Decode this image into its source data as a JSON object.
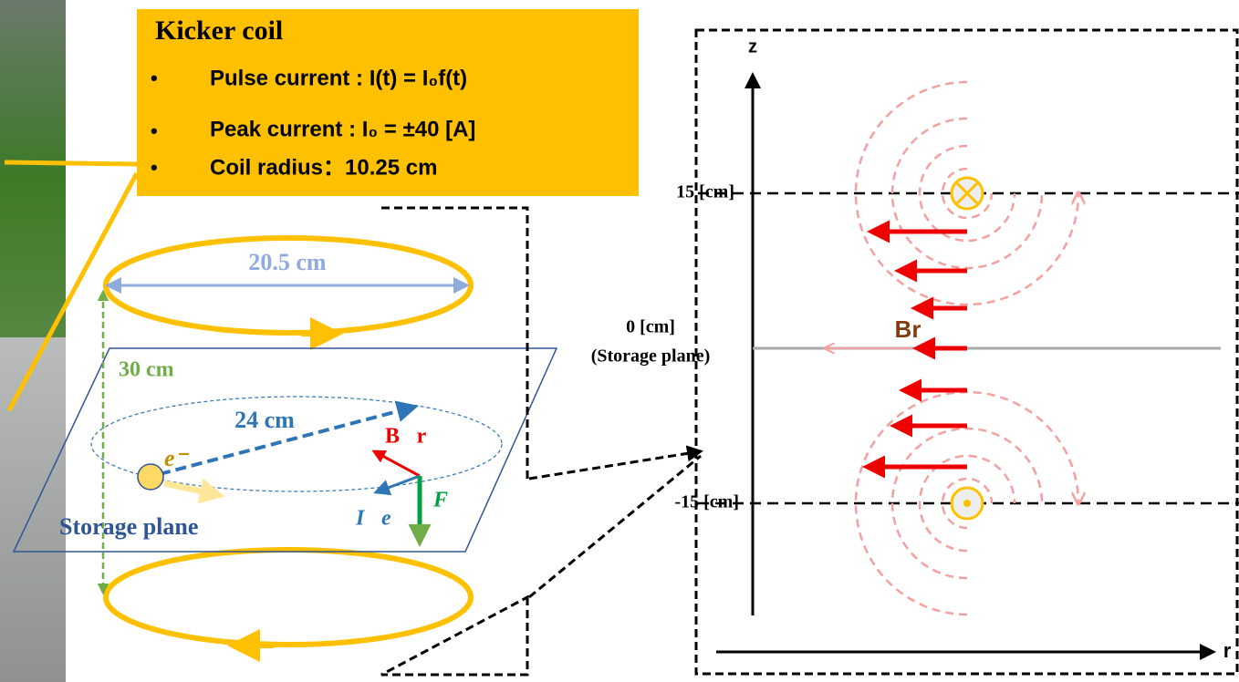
{
  "kicker": {
    "title": "Kicker coil",
    "items": [
      "Pulse current : I(t) = I₀f(t)",
      "Peak current : I₀ = ±40 [A]",
      "Coil radius：10.25 cm"
    ]
  },
  "left": {
    "diameter": "20.5 cm",
    "height": "30 cm",
    "radius": "24 cm",
    "electron": "e⁻",
    "field": "B⃗r",
    "force": "F⃗",
    "current": "I⃗e",
    "plane": "Storage plane"
  },
  "right": {
    "z_axis": "z",
    "r_axis": "r",
    "upper": "15 [cm]",
    "middle": "0 [cm]",
    "middle_note": "(Storage plane)",
    "lower": "-15 [cm]",
    "field": "Br"
  }
}
